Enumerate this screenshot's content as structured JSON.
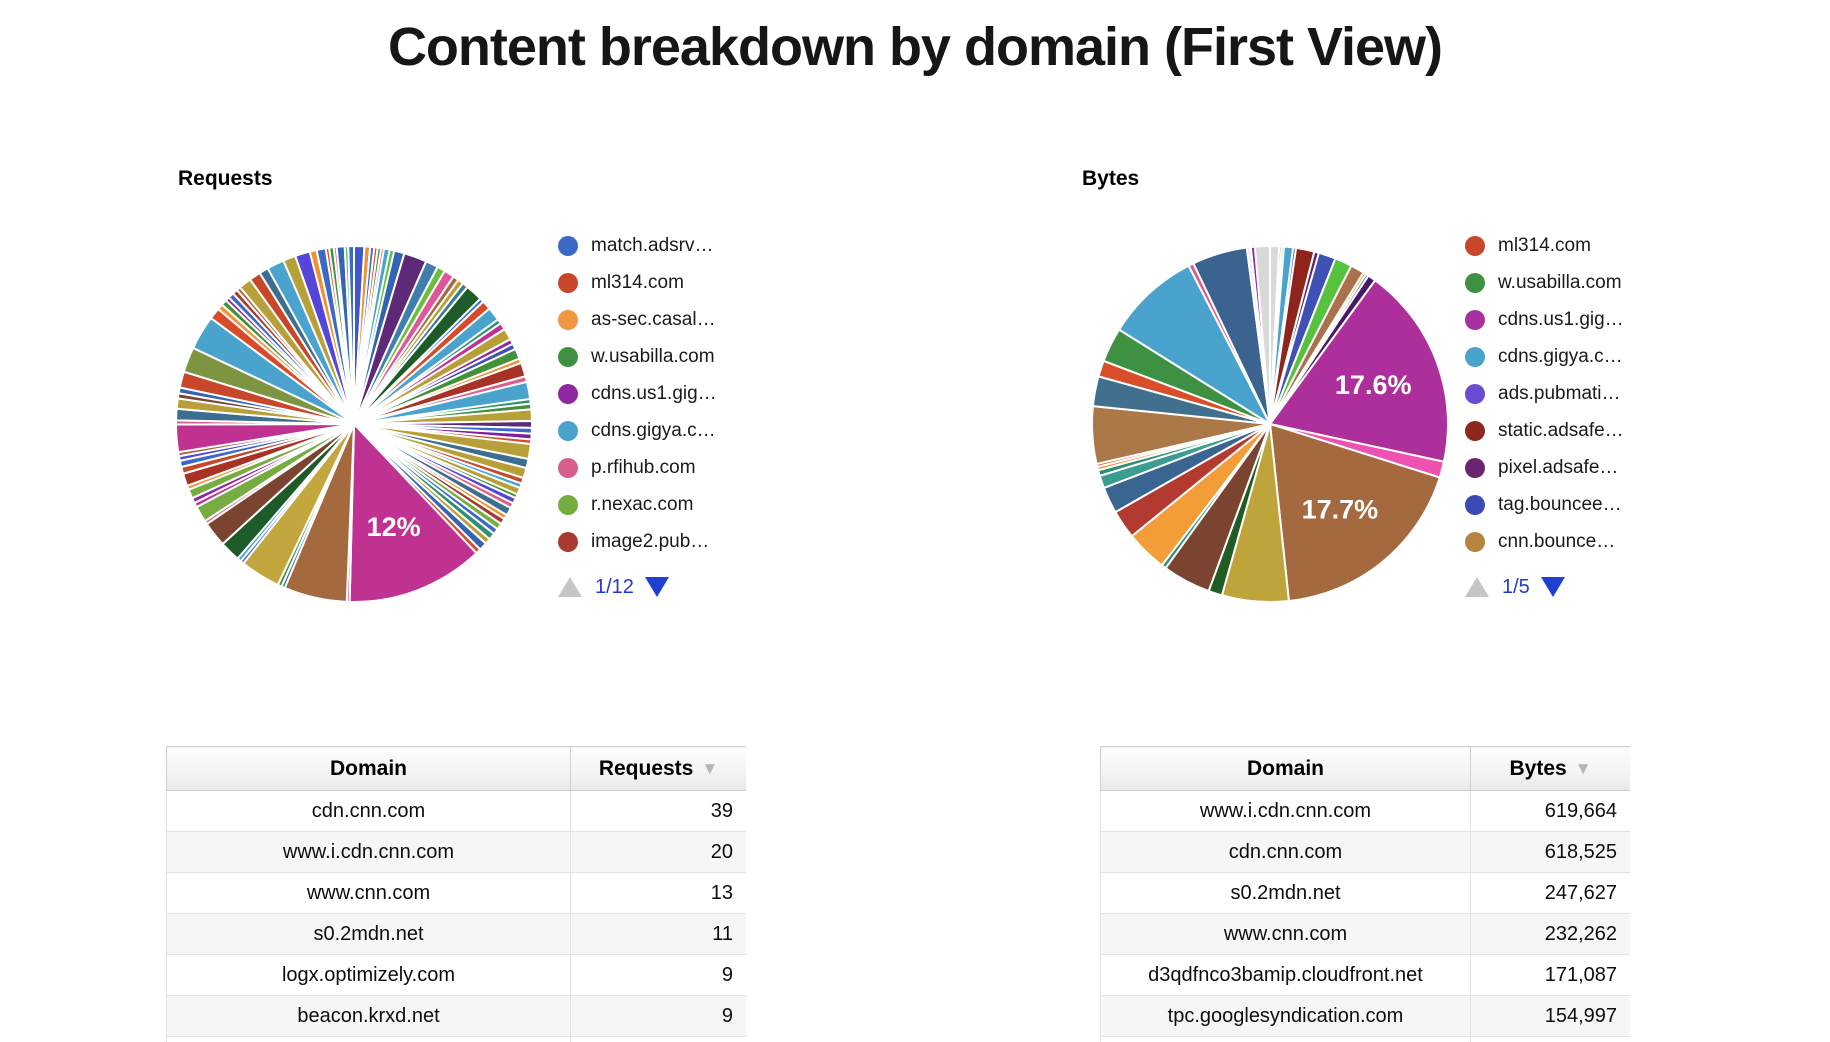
{
  "page": {
    "title": "Content breakdown by domain (First View)"
  },
  "chart_data": [
    {
      "type": "pie",
      "name": "requests",
      "section_label": "Requests",
      "legend_position": "right",
      "pager": {
        "text": "1/12",
        "up_enabled": false,
        "down_enabled": true,
        "up_color": "#c6c6c6",
        "down_color": "#1d3fd4",
        "text_color": "#2438cf"
      },
      "legend": [
        {
          "label": "match.adsrv…",
          "color": "#3b69c6"
        },
        {
          "label": "ml314.com",
          "color": "#c8472b"
        },
        {
          "label": "as-sec.casal…",
          "color": "#ef9640"
        },
        {
          "label": "w.usabilla.com",
          "color": "#3e9142"
        },
        {
          "label": "cdns.us1.gig…",
          "color": "#8f27a1"
        },
        {
          "label": "cdns.gigya.c…",
          "color": "#49a3cd"
        },
        {
          "label": "p.rfihub.com",
          "color": "#d85f8d"
        },
        {
          "label": "r.nexac.com",
          "color": "#75ad40"
        },
        {
          "label": "image2.pub…",
          "color": "#a83a32"
        }
      ],
      "labeled_slices": [
        {
          "label": "12%",
          "value_pct": 12
        }
      ],
      "slices": [
        [
          0.9,
          "#4156c8"
        ],
        [
          0.5,
          "#ef9033"
        ],
        [
          0.35,
          "#3b69c6"
        ],
        [
          0.3,
          "#d94a2b"
        ],
        [
          0.3,
          "#44913c"
        ],
        [
          0.25,
          "#e0569c"
        ],
        [
          0.5,
          "#49a3cd"
        ],
        [
          0.4,
          "#57c23e"
        ],
        [
          0.9,
          "#3464b2"
        ],
        [
          2.0,
          "#5e2a78"
        ],
        [
          1.1,
          "#3f7fae"
        ],
        [
          0.7,
          "#6abf3e"
        ],
        [
          0.9,
          "#e0569c"
        ],
        [
          0.5,
          "#a5693f"
        ],
        [
          0.5,
          "#b8a038"
        ],
        [
          0.5,
          "#3c7a8e"
        ],
        [
          1.5,
          "#1d5c28"
        ],
        [
          0.35,
          "#3b69c6"
        ],
        [
          0.8,
          "#d94a2b"
        ],
        [
          1.2,
          "#49a3cd"
        ],
        [
          0.4,
          "#2f8f73"
        ],
        [
          0.6,
          "#bf3292"
        ],
        [
          1.0,
          "#b8a038"
        ],
        [
          0.45,
          "#8f27a1"
        ],
        [
          0.5,
          "#3f51b5"
        ],
        [
          0.9,
          "#44913c"
        ],
        [
          0.4,
          "#ef9033"
        ],
        [
          1.2,
          "#a93226"
        ],
        [
          0.5,
          "#d85f8d"
        ],
        [
          1.5,
          "#49a3cd"
        ],
        [
          0.4,
          "#2f8f73"
        ],
        [
          0.5,
          "#44913c"
        ],
        [
          1.0,
          "#b8a038"
        ],
        [
          0.6,
          "#5e2a78"
        ],
        [
          0.5,
          "#3b69c6"
        ],
        [
          0.5,
          "#7b1fa2"
        ],
        [
          0.4,
          "#d94a2b"
        ],
        [
          1.3,
          "#b8a038"
        ],
        [
          0.8,
          "#3c6e8f"
        ],
        [
          0.9,
          "#b8a038"
        ],
        [
          0.5,
          "#c8472b"
        ],
        [
          0.4,
          "#49a3cd"
        ],
        [
          0.6,
          "#b8a038"
        ],
        [
          0.35,
          "#44913c"
        ],
        [
          0.5,
          "#5346d8"
        ],
        [
          0.45,
          "#d85f8d"
        ],
        [
          0.7,
          "#3c6e8f"
        ],
        [
          0.4,
          "#ef9033"
        ],
        [
          0.5,
          "#a83a32"
        ],
        [
          0.55,
          "#75ad40"
        ],
        [
          0.5,
          "#3b69c6"
        ],
        [
          0.6,
          "#2f8f73"
        ],
        [
          0.5,
          "#b8a038"
        ],
        [
          0.7,
          "#3464b2"
        ],
        [
          0.45,
          "#d94a2b"
        ],
        [
          12,
          "#bf3292",
          "12%"
        ],
        [
          0.25,
          "#e0569c"
        ],
        [
          5.5,
          "#a5693f"
        ],
        [
          0.3,
          "#3c6e8f"
        ],
        [
          0.35,
          "#44913c"
        ],
        [
          3.5,
          "#c3a63d"
        ],
        [
          0.3,
          "#3b69c6"
        ],
        [
          0.35,
          "#49a3cd"
        ],
        [
          1.8,
          "#1d5c28"
        ],
        [
          2.2,
          "#7a4430"
        ],
        [
          0.3,
          "#d85f8d"
        ],
        [
          1.4,
          "#75ad40"
        ],
        [
          0.4,
          "#bf3292"
        ],
        [
          0.45,
          "#8f27a1"
        ],
        [
          0.8,
          "#75ad40"
        ],
        [
          0.35,
          "#ef9033"
        ],
        [
          1.1,
          "#a93226"
        ],
        [
          0.6,
          "#c8472b"
        ],
        [
          0.55,
          "#3b69c6"
        ],
        [
          0.4,
          "#5346d8"
        ],
        [
          0.35,
          "#a5693f"
        ],
        [
          2.4,
          "#bf3292"
        ],
        [
          0.35,
          "#d85f8d"
        ],
        [
          1.0,
          "#3c6e8f"
        ],
        [
          0.9,
          "#b8a038"
        ],
        [
          0.45,
          "#7a4430"
        ],
        [
          0.5,
          "#3464b2"
        ],
        [
          1.4,
          "#c8472b"
        ],
        [
          2.2,
          "#7d9440"
        ],
        [
          3.0,
          "#49a3cd"
        ],
        [
          1.0,
          "#d94a2b"
        ],
        [
          0.5,
          "#ef9640"
        ],
        [
          0.5,
          "#44913c"
        ],
        [
          0.35,
          "#8f27a1"
        ],
        [
          0.5,
          "#3b69c6"
        ],
        [
          0.45,
          "#a83a32"
        ],
        [
          0.35,
          "#a5693f"
        ],
        [
          1.1,
          "#b8a038"
        ],
        [
          1.0,
          "#c8472b"
        ],
        [
          0.8,
          "#3c6e8f"
        ],
        [
          1.5,
          "#49a3cd"
        ],
        [
          1.1,
          "#b8a038"
        ],
        [
          1.3,
          "#5346d8"
        ],
        [
          0.6,
          "#ef9033"
        ],
        [
          0.8,
          "#3b69c6"
        ],
        [
          0.3,
          "#d94a2b"
        ],
        [
          0.4,
          "#44913c"
        ],
        [
          0.25,
          "#e0569c"
        ],
        [
          0.7,
          "#3464b2"
        ],
        [
          0.3,
          "#57c23e"
        ],
        [
          0.5,
          "#3b69c6"
        ]
      ]
    },
    {
      "type": "pie",
      "name": "bytes",
      "section_label": "Bytes",
      "legend_position": "right",
      "pager": {
        "text": "1/5",
        "up_enabled": false,
        "down_enabled": true,
        "up_color": "#c6c6c6",
        "down_color": "#1d3fd4",
        "text_color": "#2438cf"
      },
      "legend": [
        {
          "label": "ml314.com",
          "color": "#c8472b"
        },
        {
          "label": "w.usabilla.com",
          "color": "#3e9142"
        },
        {
          "label": "cdns.us1.gig…",
          "color": "#a6309f"
        },
        {
          "label": "cdns.gigya.c…",
          "color": "#49a3cd"
        },
        {
          "label": "ads.pubmati…",
          "color": "#6a4bd4"
        },
        {
          "label": "static.adsafe…",
          "color": "#8e281c"
        },
        {
          "label": "pixel.adsafe…",
          "color": "#6b2470"
        },
        {
          "label": "tag.bouncee…",
          "color": "#3a4cb4"
        },
        {
          "label": "cnn.bounce…",
          "color": "#b5853f"
        }
      ],
      "labeled_slices": [
        {
          "label": "17.6%",
          "value_pct": 17.6
        },
        {
          "label": "17.7%",
          "value_pct": 17.7
        }
      ],
      "slices": [
        [
          0.8,
          "#d9d9d9"
        ],
        [
          0.2,
          "#c8472b"
        ],
        [
          0.2,
          "#3e9142"
        ],
        [
          0.8,
          "#49a3cd"
        ],
        [
          0.25,
          "#3a4cb4"
        ],
        [
          1.6,
          "#8e241c"
        ],
        [
          0.4,
          "#5c2470"
        ],
        [
          1.5,
          "#3f51b5"
        ],
        [
          1.5,
          "#56c23e"
        ],
        [
          1.2,
          "#a9724d"
        ],
        [
          0.25,
          "#ef9033"
        ],
        [
          0.25,
          "#3c6e8f"
        ],
        [
          0.7,
          "#47186b"
        ],
        [
          17.6,
          "#ad2f9c",
          "17.6%"
        ],
        [
          1.4,
          "#ee51b1"
        ],
        [
          17.7,
          "#a5693f",
          "17.7%"
        ],
        [
          5.8,
          "#bfa43c"
        ],
        [
          1.2,
          "#225c25"
        ],
        [
          4.2,
          "#7a4430"
        ],
        [
          0.4,
          "#2f8f73"
        ],
        [
          3.6,
          "#f29d38"
        ],
        [
          2.5,
          "#b23a31"
        ],
        [
          2.3,
          "#3a6590"
        ],
        [
          1.1,
          "#3a9d8f"
        ],
        [
          0.5,
          "#2f8f73"
        ],
        [
          0.3,
          "#ef9033"
        ],
        [
          0.25,
          "#d94a2b"
        ],
        [
          5.0,
          "#ab7848"
        ],
        [
          2.6,
          "#41708e"
        ],
        [
          1.4,
          "#d84e28"
        ],
        [
          3.0,
          "#3e9142"
        ],
        [
          8.2,
          "#49a3cd"
        ],
        [
          0.45,
          "#d85f8d"
        ],
        [
          4.8,
          "#3a6390"
        ],
        [
          0.35,
          "#ededed"
        ],
        [
          0.35,
          "#8f27a1"
        ],
        [
          1.3,
          "#d9d9d9"
        ]
      ]
    },
    {
      "type": "table",
      "name": "requests_table",
      "columns": [
        "Domain",
        "Requests"
      ],
      "sort": {
        "column": "Requests",
        "direction": "desc",
        "icon": "▼"
      },
      "rows": [
        [
          "cdn.cnn.com",
          "39"
        ],
        [
          "www.i.cdn.cnn.com",
          "20"
        ],
        [
          "www.cnn.com",
          "13"
        ],
        [
          "s0.2mdn.net",
          "11"
        ],
        [
          "logx.optimizely.com",
          "9"
        ],
        [
          "beacon.krxd.net",
          "9"
        ]
      ]
    },
    {
      "type": "table",
      "name": "bytes_table",
      "columns": [
        "Domain",
        "Bytes"
      ],
      "sort": {
        "column": "Bytes",
        "direction": "desc",
        "icon": "▼"
      },
      "rows": [
        [
          "www.i.cdn.cnn.com",
          "619,664"
        ],
        [
          "cdn.cnn.com",
          "618,525"
        ],
        [
          "s0.2mdn.net",
          "247,627"
        ],
        [
          "www.cnn.com",
          "232,262"
        ],
        [
          "d3qdfnco3bamip.cloudfront.net",
          "171,087"
        ],
        [
          "tpc.googlesyndication.com",
          "154,997"
        ]
      ]
    }
  ]
}
